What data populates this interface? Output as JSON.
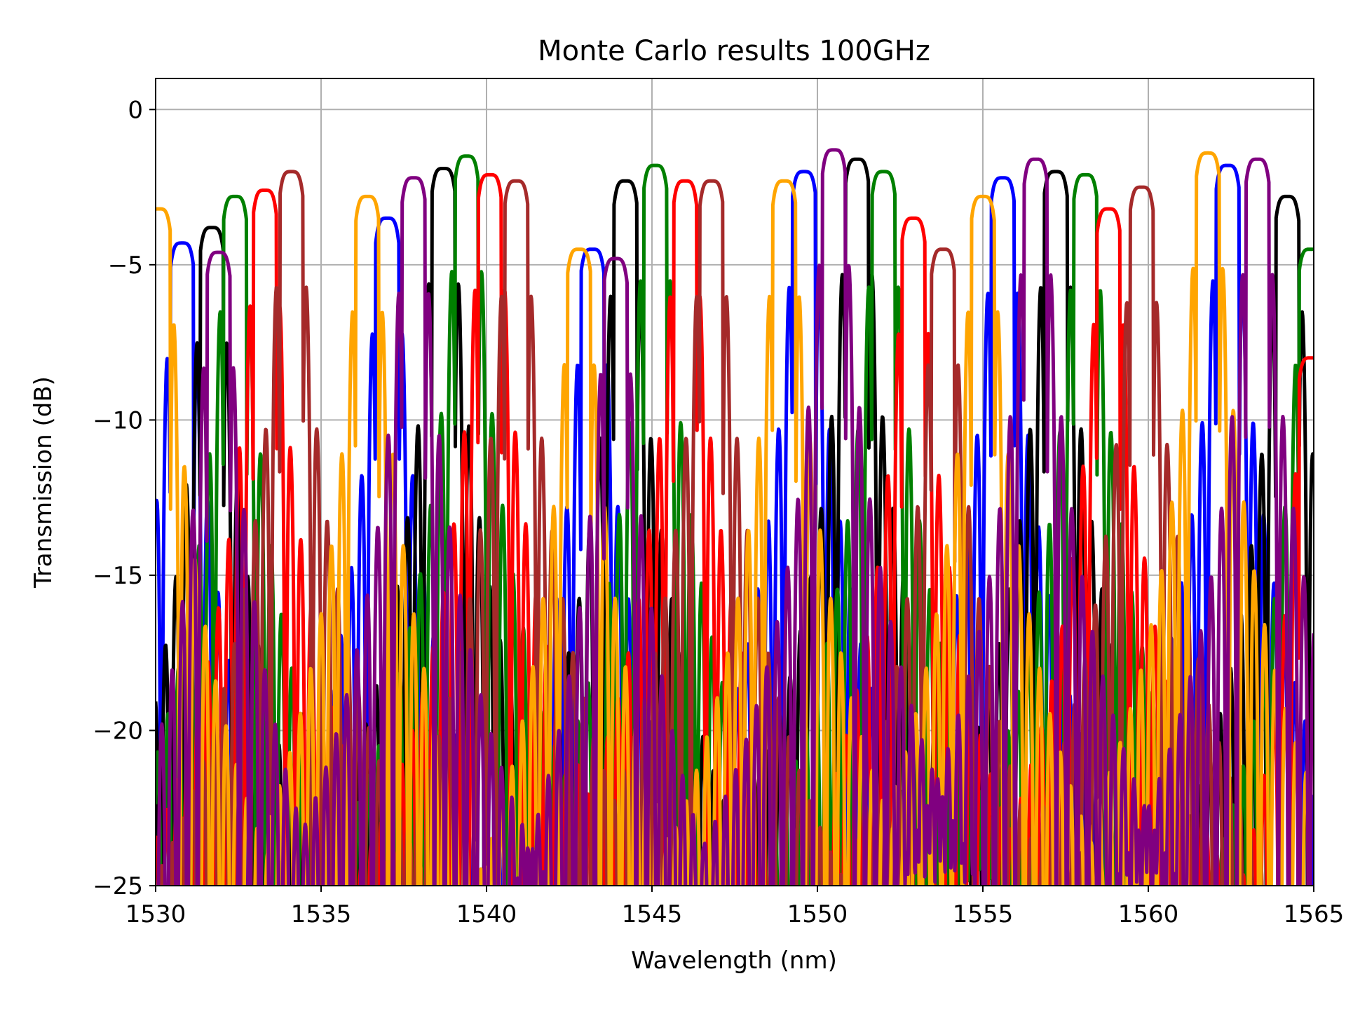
{
  "chart_data": {
    "type": "line",
    "title": "Monte Carlo results 100GHz",
    "xlabel": "Wavelength (nm)",
    "ylabel": "Transmission (dB)",
    "xlim": [
      1530,
      1565
    ],
    "ylim": [
      -25,
      1
    ],
    "xticks": [
      1530,
      1535,
      1540,
      1545,
      1550,
      1555,
      1560,
      1565
    ],
    "yticks": [
      0,
      -5,
      -10,
      -15,
      -20,
      -25
    ],
    "xtick_labels": [
      "1530",
      "1535",
      "1540",
      "1545",
      "1550",
      "1555",
      "1560",
      "1565"
    ],
    "ytick_labels": [
      "0",
      "−5",
      "−10",
      "−15",
      "−20",
      "−25"
    ],
    "grid": true,
    "legend": "none",
    "series": [
      {
        "color": "#0000ff",
        "peaks": [
          1530.8,
          1537.0,
          1543.2,
          1549.6,
          1555.6,
          1562.4
        ],
        "peak_db": [
          -4.3,
          -3.5,
          -4.5,
          -2.0,
          -2.2,
          -1.8
        ],
        "width_nm": 1.0
      },
      {
        "color": "#000000",
        "peaks": [
          1531.7,
          1538.7,
          1544.2,
          1551.2,
          1557.2,
          1564.2
        ],
        "peak_db": [
          -3.8,
          -1.9,
          -2.3,
          -1.6,
          -2.0,
          -2.8
        ],
        "width_nm": 1.0
      },
      {
        "color": "#008000",
        "peaks": [
          1532.4,
          1539.4,
          1545.1,
          1552.0,
          1558.1,
          1564.9
        ],
        "peak_db": [
          -2.8,
          -1.5,
          -1.8,
          -2.0,
          -2.1,
          -4.5
        ],
        "width_nm": 1.0
      },
      {
        "color": "#ff0000",
        "peaks": [
          1533.3,
          1540.1,
          1546.0,
          1552.9,
          1558.8,
          1564.9
        ],
        "peak_db": [
          -2.6,
          -2.1,
          -2.3,
          -3.5,
          -3.2,
          -8.0
        ],
        "width_nm": 1.0
      },
      {
        "color": "#a52a2a",
        "peaks": [
          1534.1,
          1540.9,
          1546.8,
          1553.8,
          1559.8
        ],
        "peak_db": [
          -2.0,
          -2.3,
          -2.3,
          -4.5,
          -2.5
        ],
        "width_nm": 1.0
      },
      {
        "color": "#ffa500",
        "peaks": [
          1530.1,
          1536.4,
          1542.8,
          1549.0,
          1555.0,
          1561.8
        ],
        "peak_db": [
          -3.2,
          -2.8,
          -4.5,
          -2.3,
          -2.8,
          -1.4
        ],
        "width_nm": 1.0
      },
      {
        "color": "#800080",
        "peaks": [
          1531.9,
          1537.8,
          1543.9,
          1550.5,
          1556.6,
          1563.3
        ],
        "peak_db": [
          -4.6,
          -2.2,
          -4.8,
          -1.3,
          -1.6,
          -1.6
        ],
        "width_nm": 1.0
      }
    ]
  }
}
